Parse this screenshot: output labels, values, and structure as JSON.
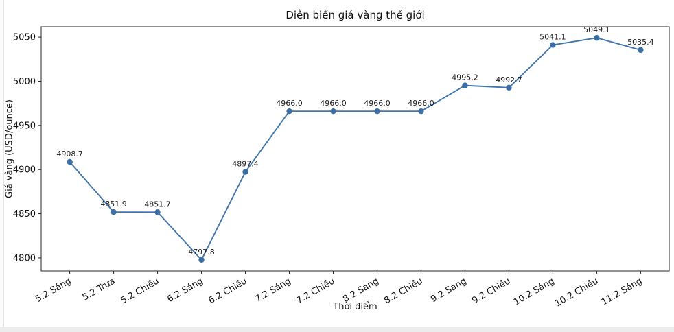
{
  "chart_data": {
    "type": "line",
    "title": "Diễn biến giá vàng thế giới",
    "xlabel": "Thời điểm",
    "ylabel": "Giá vàng (USD/ounce)",
    "categories": [
      "5.2 Sáng",
      "5.2 Trưa",
      "5.2 Chiều",
      "6.2 Sáng",
      "6.2 Chiều",
      "7.2 Sáng",
      "7.2 Chiều",
      "8.2 Sáng",
      "8.2 Chiều",
      "9.2 Sáng",
      "9.2 Chiều",
      "10.2 Sáng",
      "10.2 Chiều",
      "11.2 Sáng"
    ],
    "values": [
      4908.7,
      4851.9,
      4851.7,
      4797.8,
      4897.4,
      4966.0,
      4966.0,
      4966.0,
      4966.0,
      4995.2,
      4992.7,
      5041.1,
      5049.1,
      5035.4
    ],
    "point_labels": [
      "4908.7",
      "4851.9",
      "4851.7",
      "4797.8",
      "4897.4",
      "4966.0",
      "4966.0",
      "4966.0",
      "4966.0",
      "4995.2",
      "4992.7",
      "5041.1",
      "5049.1",
      "5035.4"
    ],
    "yticks": [
      4800,
      4850,
      4900,
      4950,
      5000,
      5050
    ],
    "ylim": [
      4785.2,
      5061.7
    ],
    "xtick_rotation": 30,
    "grid": false,
    "legend": "none",
    "line_color": "#4076ad",
    "marker_color": "#3a6ea5",
    "spine_color": "#262626",
    "tick_label_color": "#111111",
    "point_label_color": "#1a1a1a"
  }
}
